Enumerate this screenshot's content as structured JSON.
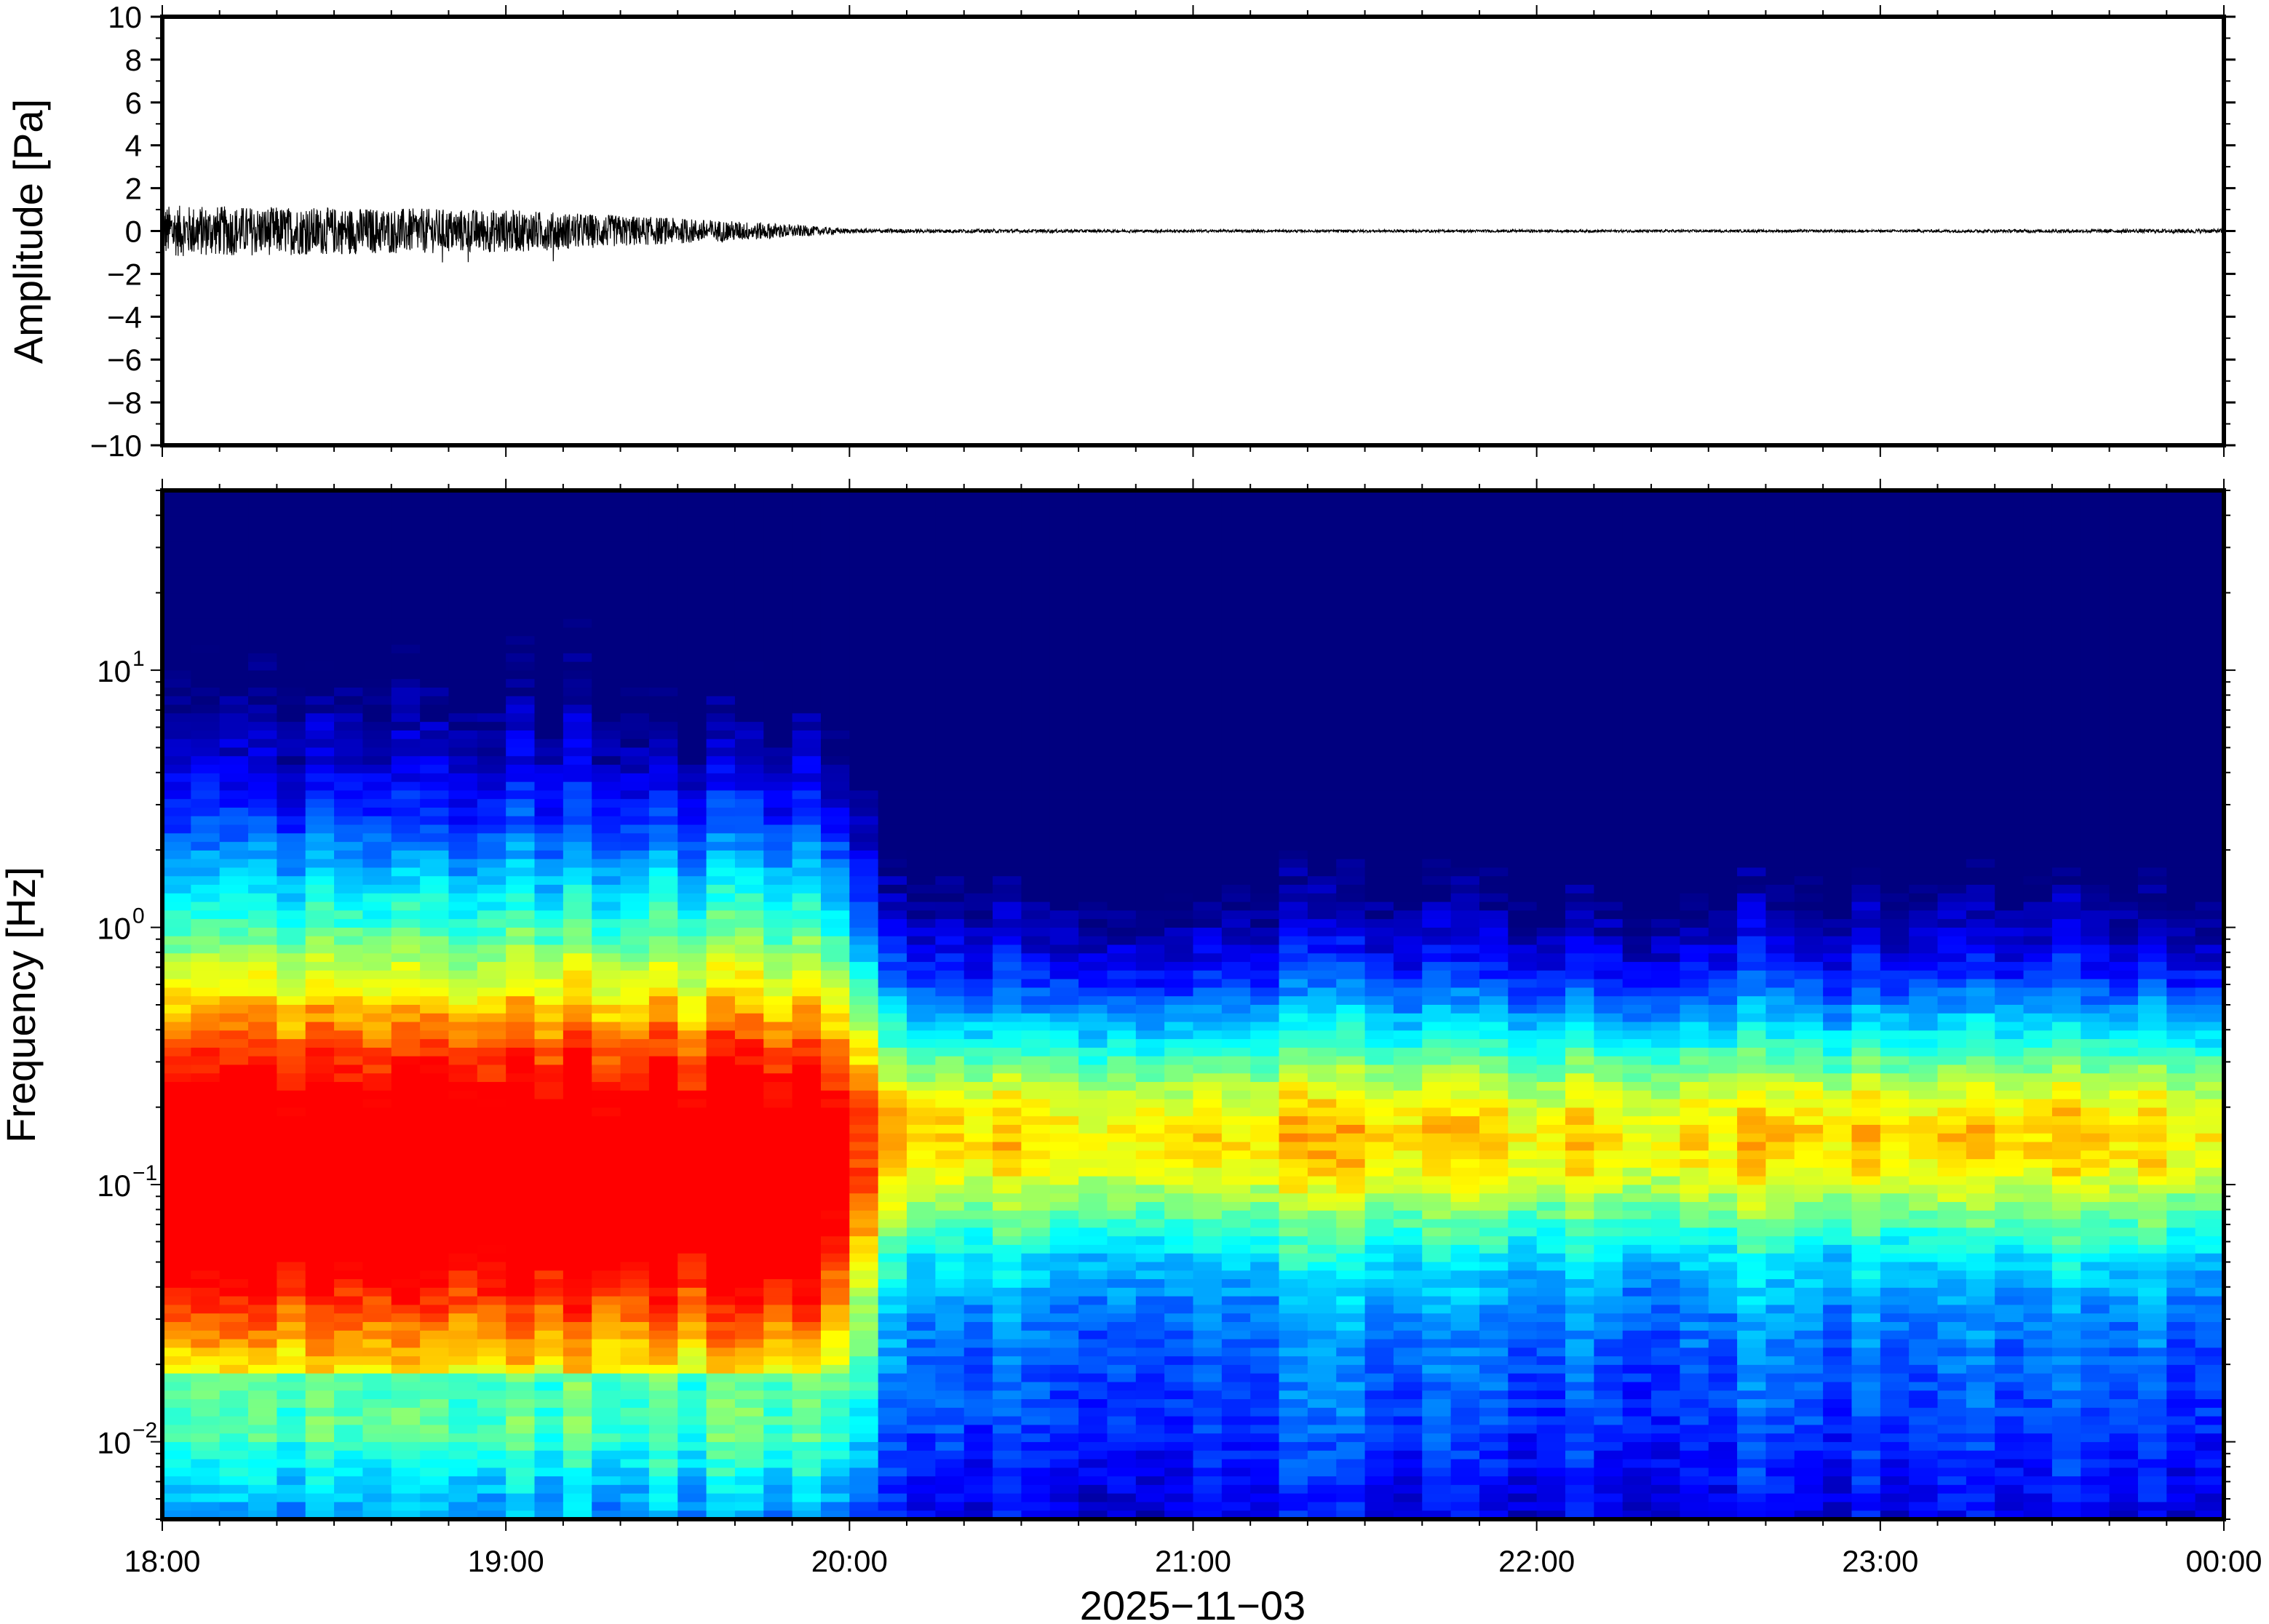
{
  "chart_data": [
    {
      "type": "line",
      "panel": "waveform",
      "ylabel": "Amplitude [Pa]",
      "ylim": [
        -10,
        10
      ],
      "yticks": [
        10,
        8,
        6,
        4,
        2,
        0,
        -2,
        -4,
        -6,
        -8,
        -10
      ],
      "ytick_labels": [
        "10",
        "8",
        "6",
        "4",
        "2",
        "0",
        "−2",
        "−4",
        "−6",
        "−8",
        "−10"
      ],
      "x_range": [
        "18:00",
        "00:00"
      ],
      "series": [
        {
          "x_hours": [
            18.0,
            18.5,
            19.0,
            19.5,
            19.75,
            20.0,
            21.0,
            22.0,
            23.0,
            24.0
          ],
          "envelope_pa": [
            1.2,
            1.1,
            1.0,
            0.6,
            0.4,
            0.1,
            0.06,
            0.06,
            0.06,
            0.1
          ]
        }
      ]
    },
    {
      "type": "heatmap",
      "panel": "spectrogram",
      "ylabel": "Frequency [Hz]",
      "yscale": "log",
      "ylim": [
        0.005,
        50
      ],
      "ytick_labels": [
        {
          "base": "10",
          "exp": "1"
        },
        {
          "base": "10",
          "exp": "0"
        },
        {
          "base": "10",
          "exp": "−1"
        },
        {
          "base": "10",
          "exp": "−2"
        }
      ],
      "xtick_labels": [
        "18:00",
        "19:00",
        "20:00",
        "21:00",
        "22:00",
        "23:00",
        "00:00"
      ],
      "xlabel": "2025−11−03",
      "colormap": [
        "#00007f",
        "#0000ff",
        "#007fff",
        "#00ffff",
        "#7fff7f",
        "#ffff00",
        "#ff7f00",
        "#ff0000"
      ]
    }
  ],
  "colors": {
    "waveform": "#000000",
    "axes": "#000000",
    "background": "#ffffff"
  }
}
